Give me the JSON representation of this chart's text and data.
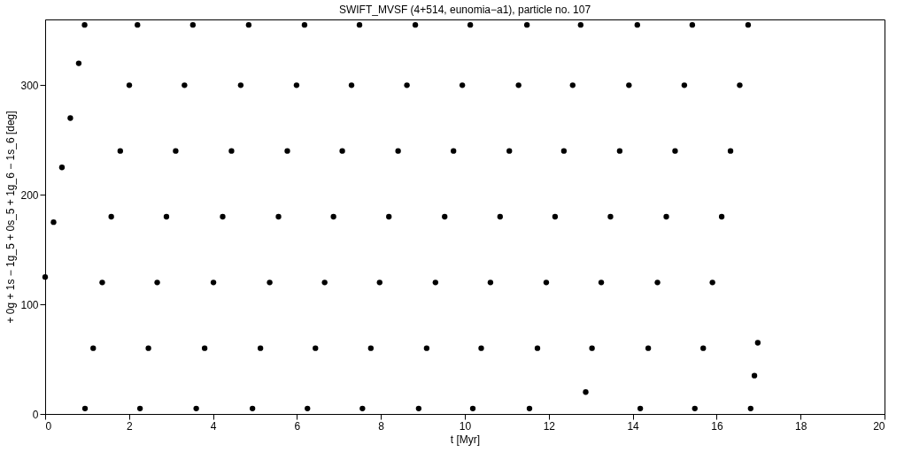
{
  "chart_data": {
    "type": "scatter",
    "title": "SWIFT_MVSF (4+514, eunomia−a1), particle no. 107",
    "xlabel": "t [Myr]",
    "ylabel": "+ 0g + 1s − 1g_5 + 0s_5 + 1g_6 − 1s_6 [deg]",
    "xlim": [
      0,
      20
    ],
    "ylim": [
      0,
      360
    ],
    "xticks": [
      0,
      2,
      4,
      6,
      8,
      10,
      12,
      14,
      16,
      18,
      20
    ],
    "yticks": [
      0,
      100,
      200,
      300
    ],
    "grid": false,
    "marker": "circle",
    "series": [
      {
        "color": "#000000",
        "x": [
          0,
          0.2,
          0.4,
          0.6,
          0.8,
          0.94,
          0.95,
          1.145,
          1.36,
          1.575,
          1.79,
          2.005,
          2.2,
          2.26,
          2.46,
          2.67,
          2.89,
          3.11,
          3.32,
          3.52,
          3.6,
          3.8,
          4.01,
          4.23,
          4.44,
          4.66,
          4.85,
          4.94,
          5.13,
          5.35,
          5.56,
          5.77,
          5.99,
          6.18,
          6.25,
          6.44,
          6.66,
          6.87,
          7.08,
          7.3,
          7.49,
          7.56,
          7.76,
          7.97,
          8.19,
          8.41,
          8.62,
          8.82,
          8.9,
          9.09,
          9.3,
          9.52,
          9.73,
          9.94,
          10.13,
          10.19,
          10.39,
          10.61,
          10.84,
          11.06,
          11.28,
          11.48,
          11.54,
          11.73,
          11.94,
          12.15,
          12.36,
          12.57,
          12.76,
          12.88,
          13.03,
          13.25,
          13.47,
          13.69,
          13.91,
          14.11,
          14.18,
          14.37,
          14.59,
          14.8,
          15.01,
          15.23,
          15.42,
          15.48,
          15.68,
          15.9,
          16.12,
          16.33,
          16.55,
          16.75,
          16.81,
          16.9,
          16.98
        ],
        "values": [
          125,
          175,
          225,
          270,
          320,
          355,
          5,
          60,
          120,
          180,
          240,
          300,
          355,
          5,
          60,
          120,
          180,
          240,
          300,
          355,
          5,
          60,
          120,
          180,
          240,
          300,
          355,
          5,
          60,
          120,
          180,
          240,
          300,
          355,
          5,
          60,
          120,
          180,
          240,
          300,
          355,
          5,
          60,
          120,
          180,
          240,
          300,
          355,
          5,
          60,
          120,
          180,
          240,
          300,
          355,
          5,
          60,
          120,
          180,
          240,
          300,
          355,
          5,
          60,
          120,
          180,
          240,
          300,
          355,
          20,
          60,
          120,
          180,
          240,
          300,
          355,
          5,
          60,
          120,
          180,
          240,
          300,
          355,
          5,
          60,
          120,
          180,
          240,
          300,
          355,
          5,
          35,
          65
        ]
      }
    ]
  }
}
